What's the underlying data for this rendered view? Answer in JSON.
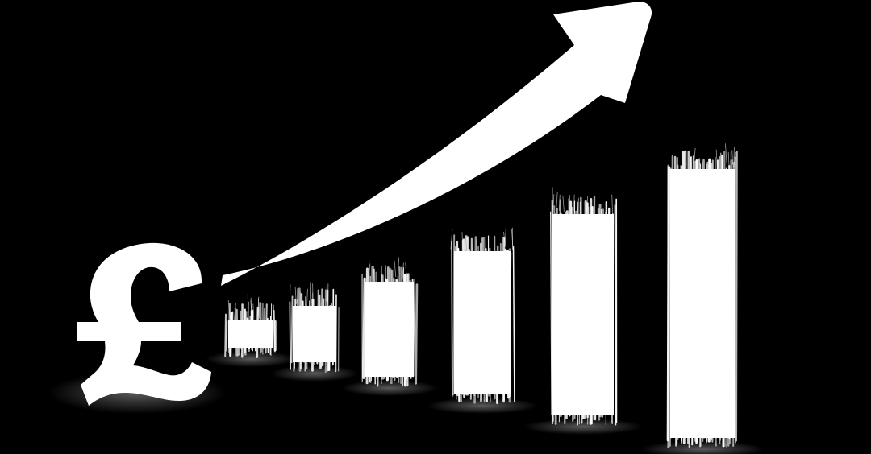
{
  "scene": {
    "background_color": "#000000",
    "foreground_color": "#ffffff",
    "symbol": "£",
    "bar_count": 6,
    "relative_bar_heights": [
      1,
      1.6,
      2.4,
      3.4,
      4.6,
      6.0
    ],
    "arrow_direction": "up-right",
    "icons": [
      "pound-sign-icon",
      "growth-arrow-icon"
    ]
  }
}
